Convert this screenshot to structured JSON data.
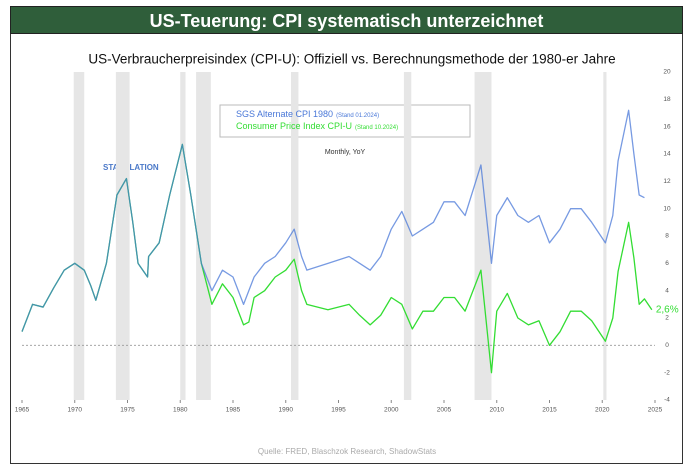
{
  "header": {
    "title": "US-Teuerung: CPI systematisch unterzeichnet"
  },
  "chart_data": {
    "type": "line",
    "title": "US-Verbraucherpreisindex (CPI-U): Offiziell vs. Berechnungsmethode der 1980-er Jahre",
    "subtitle": "Monthly, YoY",
    "annotations": [
      "STAGFLATION"
    ],
    "source": "Quelle: FRED, Blaschzok Research, ShadowStats",
    "xlim": [
      1965,
      2025
    ],
    "xticks": [
      1965,
      1970,
      1975,
      1980,
      1985,
      1990,
      1995,
      2000,
      2005,
      2010,
      2015,
      2020,
      2025
    ],
    "ylim": [
      -4,
      20
    ],
    "yticks": [
      -4,
      -2,
      0,
      2,
      4,
      6,
      8,
      10,
      12,
      14,
      16,
      18,
      20
    ],
    "reference_line": 0,
    "shaded_periods": [
      [
        1969.9,
        1970.9
      ],
      [
        1973.9,
        1975.2
      ],
      [
        1980.0,
        1980.5
      ],
      [
        1981.5,
        1982.9
      ],
      [
        1990.5,
        1991.2
      ],
      [
        2001.2,
        2001.9
      ],
      [
        2007.9,
        2009.5
      ],
      [
        2020.1,
        2020.4
      ]
    ],
    "series": [
      {
        "name": "SGS Alternate CPI 1980",
        "note": "(Stand 01.2024)",
        "color": "#4a78d8",
        "x": [
          1965,
          1966,
          1967,
          1968,
          1969,
          1970,
          1970.9,
          1971.5,
          1972,
          1973,
          1974,
          1974.9,
          1975.5,
          1976,
          1976.9,
          1977,
          1978,
          1979,
          1980.2,
          1981,
          1982,
          1983,
          1984,
          1985,
          1986,
          1987,
          1988,
          1989,
          1990,
          1990.8,
          1991.5,
          1992,
          1994,
          1996,
          1997,
          1998,
          1999,
          2000,
          2001,
          2002,
          2003,
          2004,
          2005,
          2006,
          2007,
          2008.5,
          2009.5,
          2010,
          2011,
          2012,
          2013,
          2014,
          2015,
          2016,
          2017,
          2018,
          2019,
          2020.3,
          2021,
          2021.5,
          2022.5,
          2023,
          2023.5,
          2024
        ],
        "values": [
          1.0,
          3.0,
          2.8,
          4.2,
          5.5,
          6.0,
          5.5,
          4.4,
          3.3,
          6.0,
          11.0,
          12.2,
          9.0,
          6.0,
          5.0,
          6.5,
          7.5,
          11.0,
          14.7,
          11.0,
          6.0,
          4.0,
          5.5,
          5.0,
          3.0,
          5.0,
          6.0,
          6.5,
          7.5,
          8.5,
          6.5,
          5.5,
          6.0,
          6.5,
          6.0,
          5.5,
          6.5,
          8.5,
          9.8,
          8.0,
          8.5,
          9.0,
          10.5,
          10.5,
          9.5,
          13.2,
          6.0,
          9.5,
          10.8,
          9.5,
          9.0,
          9.5,
          7.5,
          8.5,
          10.0,
          10.0,
          9.0,
          7.5,
          9.5,
          13.5,
          17.2,
          14.0,
          11.0,
          10.8
        ]
      },
      {
        "name": "Consumer Price Index CPI-U",
        "note": "(Stand 10.2024)",
        "color": "#33dd33",
        "x": [
          1965,
          1966,
          1967,
          1968,
          1969,
          1970,
          1970.9,
          1971.5,
          1972,
          1973,
          1974,
          1974.9,
          1975.5,
          1976,
          1976.9,
          1977,
          1978,
          1979,
          1980.2,
          1981,
          1982,
          1983,
          1984,
          1985,
          1986,
          1986.5,
          1987,
          1988,
          1989,
          1990,
          1990.8,
          1991.5,
          1992,
          1994,
          1996,
          1997,
          1998,
          1999,
          2000,
          2001,
          2002,
          2003,
          2004,
          2005,
          2006,
          2007,
          2008.5,
          2009.5,
          2010,
          2011,
          2012,
          2013,
          2014,
          2015,
          2016,
          2017,
          2018,
          2019,
          2020.3,
          2021,
          2021.5,
          2022.5,
          2023,
          2023.5,
          2024,
          2024.7
        ],
        "values": [
          1.0,
          3.0,
          2.8,
          4.2,
          5.5,
          6.0,
          5.5,
          4.4,
          3.3,
          6.0,
          11.0,
          12.2,
          9.0,
          6.0,
          5.0,
          6.5,
          7.5,
          11.0,
          14.7,
          11.0,
          6.0,
          3.0,
          4.5,
          3.5,
          1.5,
          1.7,
          3.5,
          4.0,
          5.0,
          5.5,
          6.3,
          4.0,
          3.0,
          2.6,
          3.0,
          2.2,
          1.5,
          2.2,
          3.5,
          3.0,
          1.2,
          2.5,
          2.5,
          3.5,
          3.5,
          2.5,
          5.5,
          -2.0,
          2.5,
          3.8,
          2.0,
          1.5,
          1.8,
          0.0,
          1.0,
          2.5,
          2.5,
          1.8,
          0.3,
          2.0,
          5.4,
          9.0,
          6.4,
          3.0,
          3.4,
          2.6
        ],
        "value_labels": [
          null,
          null,
          null,
          null,
          null,
          null,
          null,
          null,
          null,
          null,
          null,
          null,
          null,
          null,
          null,
          null,
          null,
          null,
          null,
          null,
          null,
          null,
          null,
          null,
          null,
          null,
          null,
          null,
          null,
          null,
          null,
          null,
          null,
          null,
          null,
          null,
          null,
          null,
          null,
          null,
          null,
          null,
          null,
          null,
          null,
          null,
          null,
          null,
          null,
          null,
          null,
          null,
          null,
          null,
          null,
          null,
          null,
          null,
          null,
          null,
          null,
          null,
          null,
          null,
          null,
          "2,6%"
        ]
      }
    ]
  }
}
